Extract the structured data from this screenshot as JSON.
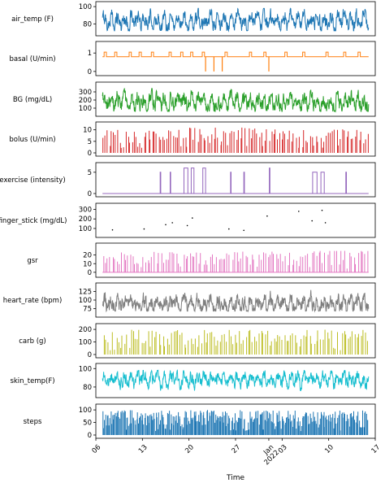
{
  "chart_data": {
    "type": "line",
    "shared_x": {
      "label": "Time",
      "ticks": [
        "06",
        "13",
        "20",
        "27",
        "Jan\n2022",
        "03",
        "10",
        "17"
      ],
      "range": [
        "2021-12-06",
        "2022-01-17"
      ],
      "data_range": [
        "2021-12-07",
        "2022-01-16"
      ]
    },
    "panels": [
      {
        "name": "air_temp",
        "ylabel": "air_temp (F)",
        "type": "line",
        "color": "#1f77b4",
        "yticks": [
          80,
          100
        ],
        "ylim": [
          70,
          102
        ],
        "summary": {
          "min": 72,
          "max": 98,
          "typical": 83
        }
      },
      {
        "name": "basal",
        "ylabel": "basal (U/min)",
        "type": "step",
        "color": "#ff7f0e",
        "yticks": [
          0,
          1
        ],
        "ylim": [
          -0.05,
          1.45
        ],
        "baseline": 0.8,
        "high": 1.05,
        "high_intervals": [
          [
            "2021-12-07 06:00",
            "2021-12-07 14:00"
          ],
          [
            "2021-12-08 20:00",
            "2021-12-09 04:00"
          ],
          [
            "2021-12-11 00:00",
            "2021-12-11 08:00"
          ],
          [
            "2021-12-12 12:00",
            "2021-12-12 20:00"
          ],
          [
            "2021-12-14 08:00",
            "2021-12-14 16:00"
          ],
          [
            "2021-12-17 00:00",
            "2021-12-17 08:00"
          ],
          [
            "2021-12-18 18:00",
            "2021-12-19 02:00"
          ],
          [
            "2021-12-20 06:00",
            "2021-12-20 14:00"
          ],
          [
            "2021-12-22 00:00",
            "2021-12-22 08:00"
          ],
          [
            "2021-12-25 10:00",
            "2021-12-25 18:00"
          ],
          [
            "2021-12-29 02:00",
            "2021-12-29 10:00"
          ],
          [
            "2021-12-31 06:00",
            "2021-12-31 14:00"
          ],
          [
            "2022-01-03 10:00",
            "2022-01-03 18:00"
          ],
          [
            "2022-01-06 02:00",
            "2022-01-06 10:00"
          ],
          [
            "2022-01-09 14:00",
            "2022-01-09 22:00"
          ],
          [
            "2022-01-12 06:00",
            "2022-01-12 14:00"
          ],
          [
            "2022-01-14 10:00",
            "2022-01-14 18:00"
          ]
        ],
        "dropouts": [
          "2021-12-22 12:00",
          "2021-12-23 18:00",
          "2021-12-25 00:00",
          "2022-01-01 00:00"
        ]
      },
      {
        "name": "BG",
        "ylabel": "BG (mg/dL)",
        "type": "line",
        "color": "#2ca02c",
        "yticks": [
          100,
          200,
          300
        ],
        "ylim": [
          40,
          380
        ],
        "summary": {
          "min": 60,
          "max": 350,
          "typical": 170
        }
      },
      {
        "name": "bolus",
        "ylabel": "bolus (U/min)",
        "type": "spikes",
        "color": "#d62728",
        "yticks": [
          0,
          5,
          10
        ],
        "ylim": [
          0,
          12
        ],
        "summary": {
          "count": 130,
          "max": 11
        }
      },
      {
        "name": "exercise",
        "ylabel": "exercise (intensity)",
        "type": "blocks",
        "color": "#9467bd",
        "yticks": [
          0,
          5
        ],
        "ylim": [
          0,
          6.5
        ],
        "events": [
          {
            "start": "2021-12-15 16:00",
            "end": "2021-12-15 18:00",
            "value": 5
          },
          {
            "start": "2021-12-17 04:00",
            "end": "2021-12-17 06:00",
            "value": 5
          },
          {
            "start": "2021-12-19 06:00",
            "end": "2021-12-19 20:00",
            "value": 6
          },
          {
            "start": "2021-12-20 08:00",
            "end": "2021-12-20 18:00",
            "value": 6
          },
          {
            "start": "2021-12-22 02:00",
            "end": "2021-12-22 12:00",
            "value": 6
          },
          {
            "start": "2021-12-26 06:00",
            "end": "2021-12-26 08:00",
            "value": 5
          },
          {
            "start": "2021-12-28 06:00",
            "end": "2021-12-28 08:00",
            "value": 5
          },
          {
            "start": "2022-01-01 02:00",
            "end": "2022-01-01 04:00",
            "value": 6
          },
          {
            "start": "2022-01-07 14:00",
            "end": "2022-01-08 06:00",
            "value": 5
          },
          {
            "start": "2022-01-08 20:00",
            "end": "2022-01-09 08:00",
            "value": 5
          },
          {
            "start": "2022-01-12 14:00",
            "end": "2022-01-12 16:00",
            "value": 5
          }
        ]
      },
      {
        "name": "finger_stick",
        "ylabel": "finger_stick (mg/dL)",
        "type": "scatter",
        "color": "#000000",
        "yticks": [
          100,
          200,
          300
        ],
        "ylim": [
          40,
          330
        ],
        "points": [
          {
            "x": "2021-12-08 12:00",
            "y": 85
          },
          {
            "x": "2021-12-13 06:00",
            "y": 95
          },
          {
            "x": "2021-12-16 12:00",
            "y": 140
          },
          {
            "x": "2021-12-17 12:00",
            "y": 160
          },
          {
            "x": "2021-12-19 18:00",
            "y": 130
          },
          {
            "x": "2021-12-20 12:00",
            "y": 210
          },
          {
            "x": "2021-12-26 00:00",
            "y": 95
          },
          {
            "x": "2021-12-28 06:00",
            "y": 80
          },
          {
            "x": "2021-12-31 18:00",
            "y": 230
          },
          {
            "x": "2022-01-05 12:00",
            "y": 280
          },
          {
            "x": "2022-01-07 12:00",
            "y": 180
          },
          {
            "x": "2022-01-09 00:00",
            "y": 290
          },
          {
            "x": "2022-01-09 12:00",
            "y": 160
          }
        ]
      },
      {
        "name": "gsr",
        "ylabel": "gsr",
        "type": "spikes",
        "color": "#e377c2",
        "yticks": [
          0,
          10,
          20
        ],
        "ylim": [
          -2,
          30
        ],
        "summary": {
          "count": 120,
          "max": 25
        }
      },
      {
        "name": "heart_rate",
        "ylabel": "heart_rate (bpm)",
        "type": "line",
        "color": "#7f7f7f",
        "yticks": [
          75,
          100,
          125
        ],
        "ylim": [
          60,
          140
        ],
        "summary": {
          "min": 68,
          "max": 135,
          "typical": 88
        }
      },
      {
        "name": "carb",
        "ylabel": "carb (g)",
        "type": "spikes",
        "color": "#bcbd22",
        "yticks": [
          0,
          100,
          200
        ],
        "ylim": [
          0,
          220
        ],
        "summary": {
          "count": 125,
          "max": 200
        }
      },
      {
        "name": "skin_temp",
        "ylabel": "skin_temp(F)",
        "type": "line",
        "color": "#17becf",
        "yticks": [
          80,
          100
        ],
        "ylim": [
          72,
          102
        ],
        "summary": {
          "min": 76,
          "max": 98,
          "typical": 88
        }
      },
      {
        "name": "steps",
        "ylabel": "steps",
        "type": "spikes",
        "color": "#1f77b4",
        "yticks": [
          0,
          50,
          100
        ],
        "ylim": [
          0,
          110
        ],
        "summary": {
          "count": 300,
          "max": 100
        }
      }
    ]
  }
}
